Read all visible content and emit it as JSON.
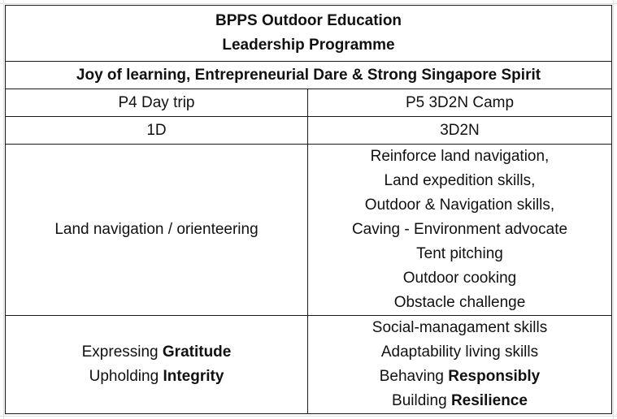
{
  "header": {
    "title_line1": "BPPS Outdoor Education",
    "title_line2": "Leadership Programme",
    "tagline": "Joy of learning, Entrepreneurial Dare & Strong Singapore Spirit"
  },
  "columns": {
    "p4_name": "P4 Day trip",
    "p5_name": "P5 3D2N Camp"
  },
  "duration": {
    "p4": "1D",
    "p5": "3D2N"
  },
  "activities": {
    "p4": "Land navigation / orienteering",
    "p5": [
      "Reinforce land navigation,",
      "Land expedition skills,",
      "Outdoor & Navigation skills,",
      "Caving - Environment advocate",
      "Tent pitching",
      "Outdoor cooking",
      "Obstacle challenge"
    ]
  },
  "values": {
    "p4": [
      {
        "prefix": "Expressing ",
        "bold": "Gratitude"
      },
      {
        "prefix": "Upholding ",
        "bold": "Integrity"
      }
    ],
    "p5": [
      {
        "prefix": "Social-managament skills",
        "bold": ""
      },
      {
        "prefix": "Adaptability living skills",
        "bold": ""
      },
      {
        "prefix": "Behaving ",
        "bold": "Responsibly"
      },
      {
        "prefix": "Building ",
        "bold": "Resilience"
      }
    ]
  }
}
